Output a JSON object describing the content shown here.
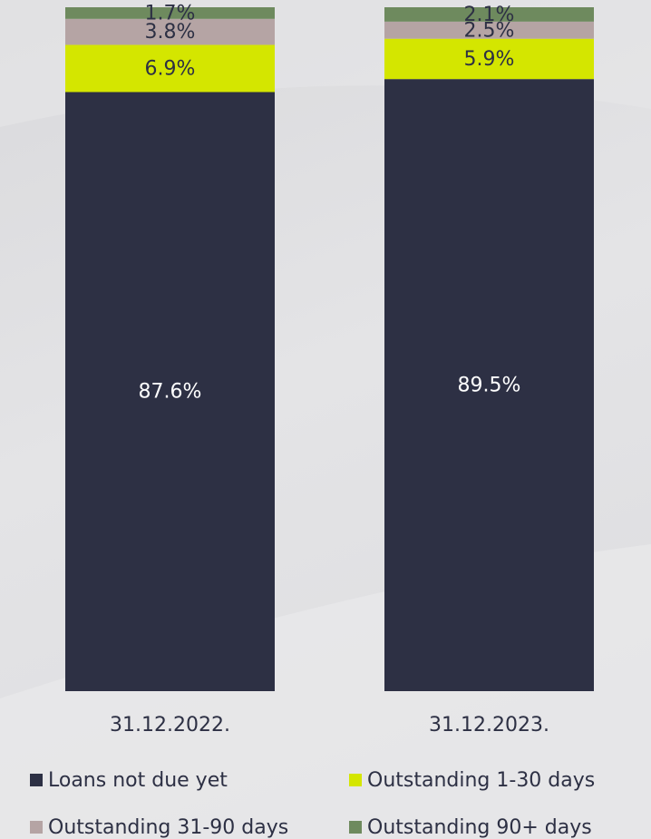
{
  "chart_data": {
    "type": "stacked-bar",
    "categories": [
      "31.12.2022.",
      "31.12.2023."
    ],
    "ylim": [
      0,
      100
    ],
    "series": [
      {
        "name": "Loans not due yet",
        "color": "#2d3044",
        "values": [
          87.6,
          89.5
        ],
        "value_labels": [
          "87.6%",
          "89.5%"
        ]
      },
      {
        "name": "Outstanding 1-30 days",
        "color": "#d4e600",
        "values": [
          6.9,
          5.9
        ],
        "value_labels": [
          "6.9%",
          "5.9%"
        ]
      },
      {
        "name": "Outstanding 31-90 days",
        "color": "#b5a4a4",
        "values": [
          3.8,
          2.5
        ],
        "value_labels": [
          "3.8%",
          "2.5%"
        ]
      },
      {
        "name": "Outstanding 90+ days",
        "color": "#6e8a5e",
        "values": [
          1.7,
          2.1
        ],
        "value_labels": [
          "1.7%",
          "2.1%"
        ]
      }
    ]
  }
}
